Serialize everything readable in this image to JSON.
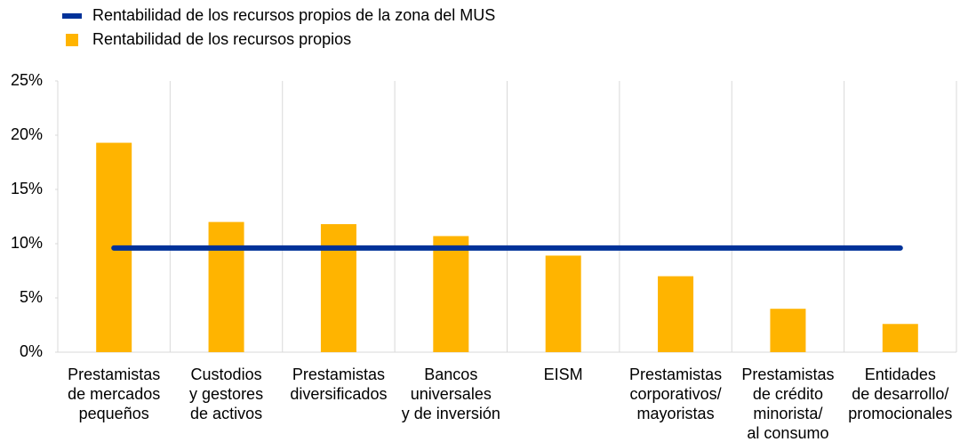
{
  "chart_data": {
    "type": "bar",
    "categories": [
      [
        "Prestamistas",
        "de mercados",
        "pequeños"
      ],
      [
        "Custodios",
        "y gestores",
        "de activos"
      ],
      [
        "Prestamistas",
        "diversificados"
      ],
      [
        "Bancos",
        "universales",
        "y de inversión"
      ],
      [
        "EISM"
      ],
      [
        "Prestamistas",
        "corporativos/",
        "mayoristas"
      ],
      [
        "Prestamistas",
        "de crédito",
        "minorista/",
        "al consumo"
      ],
      [
        "Entidades",
        "de desarrollo/",
        "promocionales"
      ]
    ],
    "series": [
      {
        "name": "Rentabilidad de los recursos propios de la zona del MUS",
        "type": "line",
        "color": "#003299",
        "values": [
          9.6,
          9.6,
          9.6,
          9.6,
          9.6,
          9.6,
          9.6,
          9.6
        ]
      },
      {
        "name": "Rentabilidad de los recursos propios",
        "type": "bar",
        "color": "#ffb400",
        "values": [
          19.3,
          12.0,
          11.8,
          10.7,
          8.9,
          7.0,
          4.0,
          2.6
        ]
      }
    ],
    "ylim": [
      0,
      25
    ],
    "yticks": [
      {
        "value": 0,
        "label": "0%"
      },
      {
        "value": 5,
        "label": "5%"
      },
      {
        "value": 10,
        "label": "10%"
      },
      {
        "value": 15,
        "label": "15%"
      },
      {
        "value": 20,
        "label": "20%"
      },
      {
        "value": 25,
        "label": "25%"
      }
    ],
    "grid": true
  }
}
